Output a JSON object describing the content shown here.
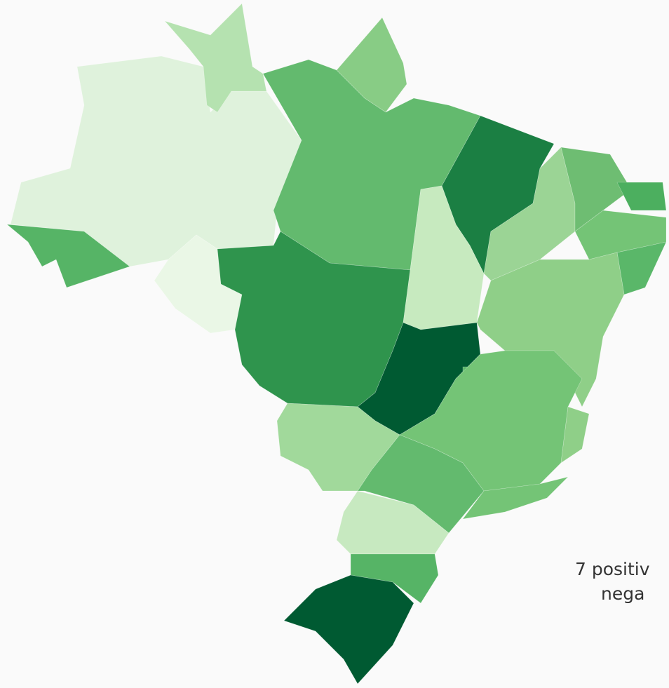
{
  "map": {
    "region_colors": [
      "#dff2dc",
      "#b5e2b0",
      "#88cc85",
      "#63ba6e",
      "#56b466",
      "#eaf7e6",
      "#2f944d",
      "#1b7f43",
      "#c7eabf",
      "#9bd495",
      "#6ebd72",
      "#4caf5f",
      "#74c476",
      "#5ab769",
      "#8fcf88",
      "#005a32",
      "#5ab769",
      "#74c476",
      "#8fcf88",
      "#a1d99b",
      "#63ba6e",
      "#74c476",
      "#c7e9c0",
      "#56b466",
      "#005a32"
    ],
    "tooltip": {
      "line1": "7 positiv",
      "line2": "nega"
    }
  }
}
